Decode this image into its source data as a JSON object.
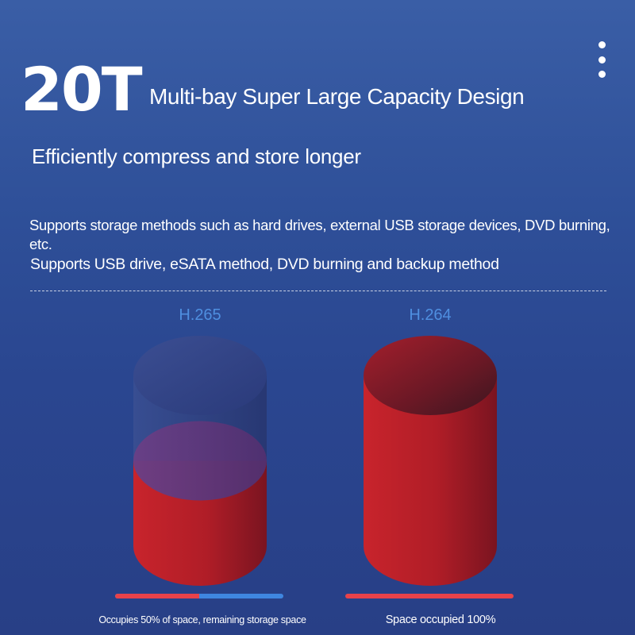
{
  "header": {
    "capacity": "20T",
    "title": "Multi-bay Super Large Capacity Design",
    "menu_icon": "more-vertical-icon"
  },
  "tagline": "Efficiently compress and store longer",
  "features": [
    "Supports storage methods such as hard drives, external USB storage devices, DVD burning, etc.",
    "Supports USB drive, eSATA method, DVD burning and backup method"
  ],
  "comparison": {
    "h265": {
      "label": "H.265",
      "occupied_percent": 50,
      "caption": "Occupies 50% of space, remaining storage space"
    },
    "h264": {
      "label": "H.264",
      "occupied_percent": 100,
      "caption": "Space occupied 100%"
    }
  },
  "colors": {
    "occupied": "#e8424a",
    "remaining": "#3f86e0",
    "codec_label": "#4f8fe0"
  }
}
